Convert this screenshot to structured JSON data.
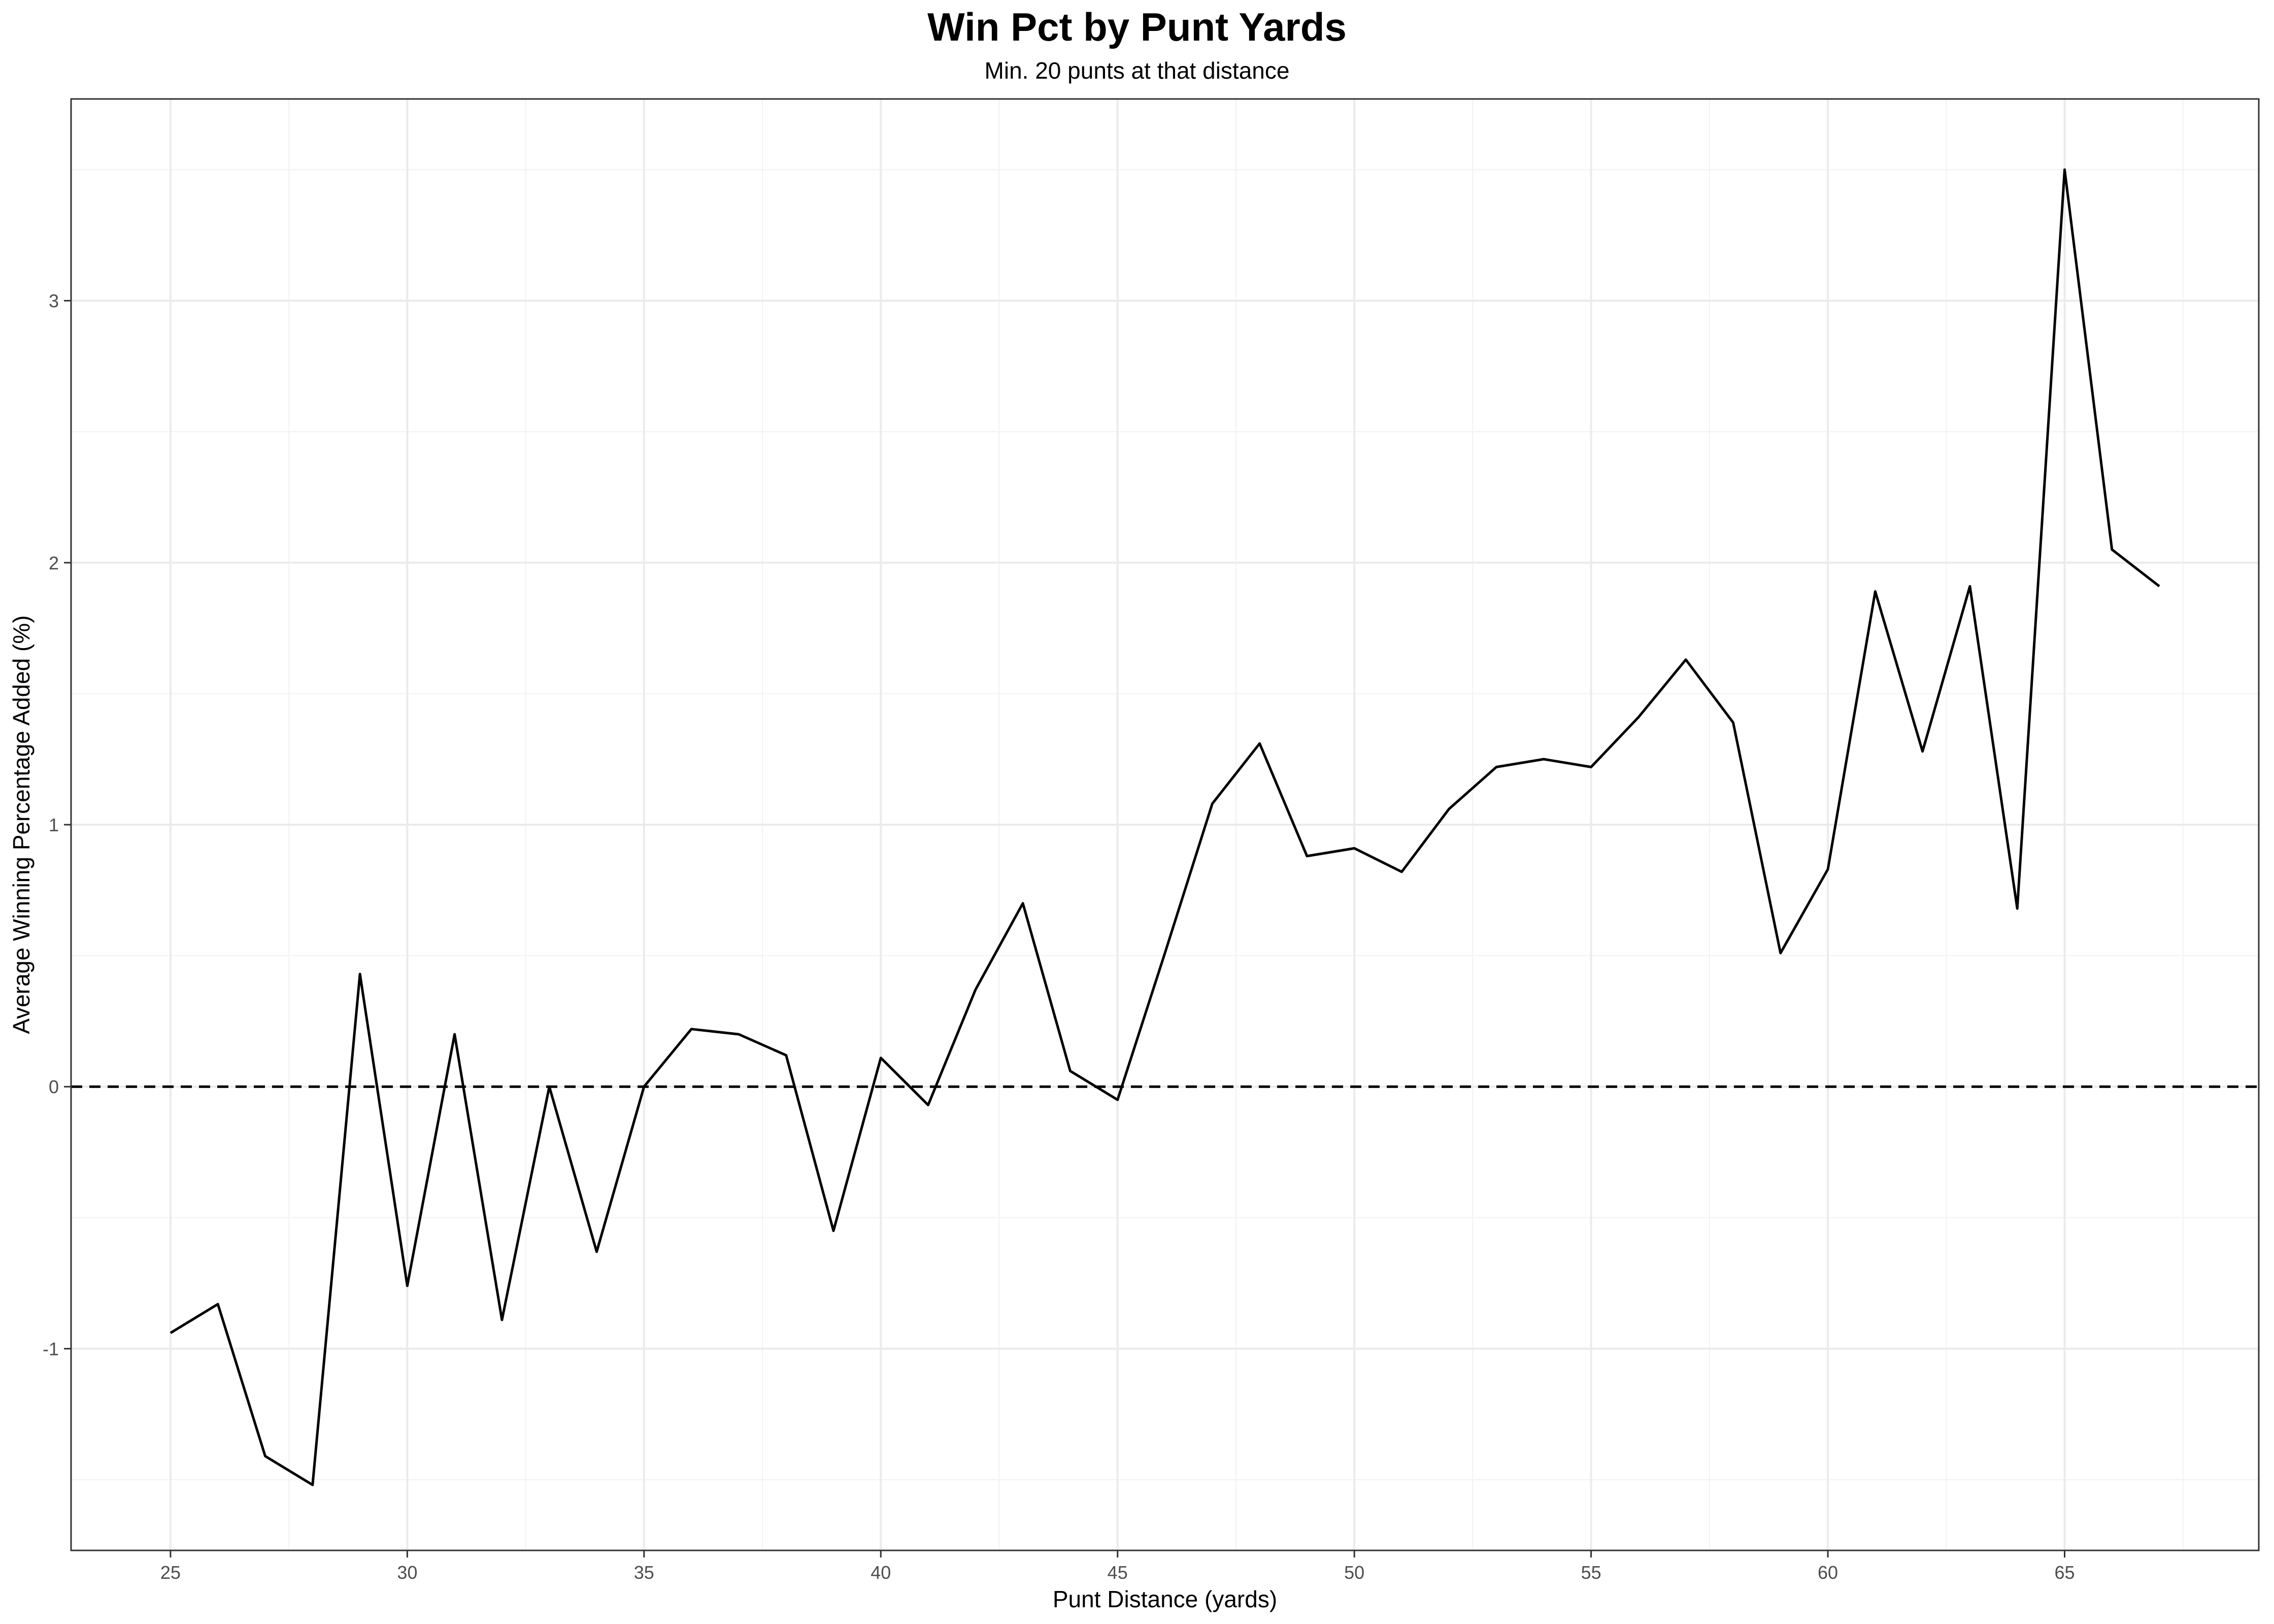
{
  "chart_data": {
    "type": "line",
    "title": "Win Pct by Punt Yards",
    "subtitle": "Min. 20 punts at that distance",
    "xlabel": "Punt Distance (yards)",
    "ylabel": "Average Winning Percentage Added (%)",
    "xlim": [
      22.9,
      69.1
    ],
    "ylim": [
      -1.77,
      3.77
    ],
    "xticks": [
      25,
      30,
      35,
      40,
      45,
      50,
      55,
      60,
      65
    ],
    "yticks": [
      -1,
      0,
      1,
      2,
      3
    ],
    "grid": true,
    "legend": "none",
    "reference_line": {
      "y": 0,
      "style": "dashed",
      "color": "#000000"
    },
    "line_color": "#000000",
    "series": [
      {
        "x": [
          25,
          26,
          27,
          28,
          29,
          30,
          31,
          32,
          33,
          34,
          35,
          36,
          37,
          38,
          39,
          40,
          41,
          42,
          43,
          44,
          45,
          46,
          47,
          48,
          49,
          50,
          51,
          52,
          53,
          54,
          55,
          56,
          57,
          58,
          59,
          60,
          61,
          62,
          63,
          64,
          65,
          66,
          67
        ],
        "values": [
          -0.94,
          -0.83,
          -1.41,
          -1.52,
          0.43,
          -0.76,
          0.2,
          -0.89,
          0.0,
          -0.63,
          0.0,
          0.22,
          0.2,
          0.12,
          -0.55,
          0.11,
          -0.07,
          0.37,
          0.7,
          0.06,
          -0.05,
          0.51,
          1.08,
          1.31,
          0.88,
          0.91,
          0.82,
          1.06,
          1.22,
          1.25,
          1.22,
          1.41,
          1.63,
          1.39,
          0.51,
          0.83,
          1.89,
          1.28,
          1.91,
          0.68,
          3.5,
          2.05,
          1.91
        ]
      }
    ]
  }
}
